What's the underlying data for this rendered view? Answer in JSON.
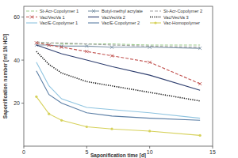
{
  "chart_data": {
    "type": "line",
    "x_label": "Saponification time [d]",
    "y_label": "Saponification number [ml 1N HCl]",
    "xlim": [
      0,
      15
    ],
    "xticks": [
      0,
      5,
      10,
      15
    ],
    "ylim": [
      0,
      65
    ],
    "yticks": [
      20,
      40,
      60
    ],
    "grid": false,
    "legend": "top",
    "x": [
      1,
      2,
      3,
      5,
      7,
      10,
      14
    ],
    "series": [
      {
        "name": "St-Acr-Copolymer 1",
        "color": "#9ccc8c",
        "line_style": "dashed",
        "values": [
          48,
          48,
          47.5,
          47.5,
          47.5,
          47,
          47
        ]
      },
      {
        "name": "Butyl-methyl acrylate",
        "color": "#7f95a8",
        "line_style": "solid",
        "marker": "x",
        "values": [
          47,
          47,
          46.5,
          46.5,
          46,
          46,
          45.5
        ]
      },
      {
        "name": "St-Acr-Copolymer 2",
        "color": "#a0a0a0",
        "line_style": "dashed",
        "values": [
          48.5,
          48,
          48,
          47.5,
          47,
          46.5,
          46
        ]
      },
      {
        "name": "Vac/VeoVa 1",
        "color": "#c0504d",
        "line_style": "dashed",
        "marker": "x",
        "values": [
          48,
          47,
          46,
          44,
          42,
          39,
          29
        ]
      },
      {
        "name": "VacVeoVa 2",
        "color": "#2f3f6f",
        "line_style": "solid",
        "values": [
          47,
          45,
          43,
          40,
          37,
          33,
          26
        ]
      },
      {
        "name": "Vac/VeoVa 3",
        "color": "#111111",
        "line_style": "dotted",
        "values": [
          44,
          38,
          34,
          30,
          28,
          25,
          21
        ]
      },
      {
        "name": "Vac/E-Copolymer 1",
        "color": "#8fc4e0",
        "line_style": "solid",
        "values": [
          39,
          28,
          22,
          18,
          17,
          15.5,
          13
        ]
      },
      {
        "name": "Vac/E-Copolymer 2",
        "color": "#5b7ea5",
        "line_style": "solid",
        "values": [
          35,
          24,
          20,
          15.5,
          14,
          13,
          12
        ]
      },
      {
        "name": "Vac-Homopolymer",
        "color": "#d6d15a",
        "line_style": "solid",
        "marker": "circle",
        "values": [
          23,
          15,
          12,
          9,
          8,
          7,
          5
        ]
      }
    ]
  }
}
